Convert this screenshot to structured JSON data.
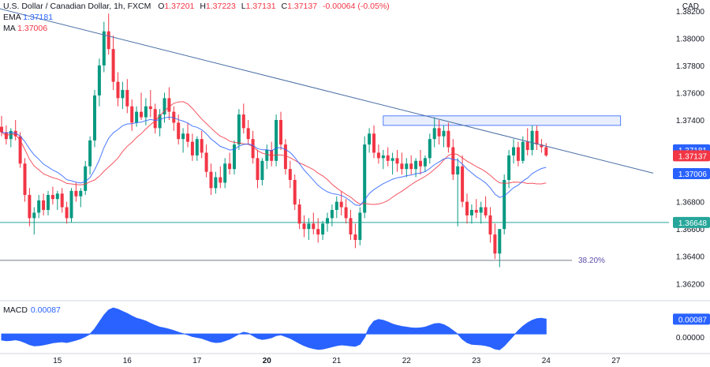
{
  "header": {
    "symbol": "U.S. Dollar / Canadian Dollar, 1h, FXCM",
    "open_label": "O",
    "open": "1.37201",
    "high_label": "H",
    "high": "1.37223",
    "low_label": "L",
    "low": "1.37131",
    "close_label": "C",
    "close": "1.37137",
    "change": "-0.00064 (-0.05%)",
    "ema_label": "EMA",
    "ema_value": "1.37181",
    "ma_label": "MA",
    "ma_value": "1.37006",
    "currency": "CAD"
  },
  "macd": {
    "label": "MACD",
    "value": "0.00087",
    "axis_tick": "0.00000"
  },
  "colors": {
    "bull": "#089981",
    "bear": "#f23645",
    "ema": "#2962ff",
    "ma": "#f23645",
    "trendline": "#4a6fa5",
    "support": "#26a69a",
    "fib": "#787b86",
    "zone_fill": "#e8eefc",
    "zone_border": "#2962ff",
    "macd_fill": "#2962ff"
  },
  "chart_data": {
    "type": "line",
    "title": "U.S. Dollar / Canadian Dollar, 1h, FXCM",
    "y_axis": {
      "ylim": [
        1.3608,
        1.3828
      ],
      "ticks": [
        "1.38200",
        "1.38000",
        "1.37800",
        "1.37600",
        "1.37400",
        "1.37200",
        "1.37000",
        "1.36800",
        "1.36600",
        "1.36400",
        "1.36200"
      ],
      "tick_values": [
        1.382,
        1.38,
        1.378,
        1.376,
        1.374,
        1.372,
        1.37,
        1.368,
        1.366,
        1.364,
        1.362
      ]
    },
    "x_axis": {
      "labels": [
        "15",
        "16",
        "17",
        "20",
        "21",
        "22",
        "23",
        "24",
        "27"
      ],
      "bold": [
        "20"
      ],
      "label_bar_index": [
        12,
        27,
        42,
        57,
        72,
        87,
        102,
        117,
        132
      ]
    },
    "price_labels": [
      {
        "text": "1.37181",
        "value": 1.37181,
        "color": "#2962ff"
      },
      {
        "text": "1.37137",
        "value": 1.37137,
        "color": "#f23645"
      },
      {
        "text": "1.37006",
        "value": 1.37006,
        "color": "#2962ff"
      },
      {
        "text": "1.36648",
        "value": 1.36648,
        "color": "#26a69a"
      }
    ],
    "horizontal_lines": [
      {
        "name": "support",
        "value": 1.36648
      },
      {
        "name": "fib-38",
        "value": 1.3637,
        "label": "38.20%"
      }
    ],
    "trendline": {
      "from": {
        "bar": -2,
        "price": 1.3823
      },
      "to": {
        "bar": 140,
        "price": 1.3701
      }
    },
    "resistance_zone": {
      "from_bar": 82,
      "to_bar": 133,
      "top": 1.3743,
      "bottom": 1.3736
    },
    "candles_ohlc": [
      [
        1.3735,
        1.3743,
        1.3728,
        1.3731
      ],
      [
        1.3731,
        1.3736,
        1.3722,
        1.3726
      ],
      [
        1.3726,
        1.3734,
        1.372,
        1.3732
      ],
      [
        1.3732,
        1.374,
        1.3725,
        1.3728
      ],
      [
        1.3728,
        1.3731,
        1.3705,
        1.3708
      ],
      [
        1.3708,
        1.3712,
        1.368,
        1.3685
      ],
      [
        1.3685,
        1.369,
        1.3662,
        1.3668
      ],
      [
        1.3668,
        1.3676,
        1.3656,
        1.3672
      ],
      [
        1.3672,
        1.3685,
        1.3668,
        1.3681
      ],
      [
        1.3681,
        1.3686,
        1.367,
        1.3674
      ],
      [
        1.3674,
        1.3688,
        1.367,
        1.3685
      ],
      [
        1.3685,
        1.3691,
        1.3678,
        1.3682
      ],
      [
        1.3682,
        1.3688,
        1.3674,
        1.3686
      ],
      [
        1.3686,
        1.369,
        1.3672,
        1.3676
      ],
      [
        1.3676,
        1.368,
        1.3664,
        1.3668
      ],
      [
        1.3668,
        1.369,
        1.3665,
        1.3688
      ],
      [
        1.3688,
        1.3694,
        1.368,
        1.3684
      ],
      [
        1.3684,
        1.369,
        1.3676,
        1.3688
      ],
      [
        1.3688,
        1.371,
        1.3685,
        1.3706
      ],
      [
        1.3706,
        1.3728,
        1.37,
        1.3725
      ],
      [
        1.3725,
        1.3762,
        1.372,
        1.3758
      ],
      [
        1.3758,
        1.3785,
        1.375,
        1.378
      ],
      [
        1.378,
        1.3812,
        1.3775,
        1.3805
      ],
      [
        1.3805,
        1.3818,
        1.3788,
        1.3792
      ],
      [
        1.3792,
        1.3802,
        1.3762,
        1.3768
      ],
      [
        1.3768,
        1.3775,
        1.375,
        1.3756
      ],
      [
        1.3756,
        1.3768,
        1.3748,
        1.3762
      ],
      [
        1.3762,
        1.377,
        1.3745,
        1.375
      ],
      [
        1.375,
        1.3755,
        1.3732,
        1.3738
      ],
      [
        1.3738,
        1.375,
        1.3735,
        1.3746
      ],
      [
        1.3746,
        1.376,
        1.374,
        1.3742
      ],
      [
        1.3742,
        1.3756,
        1.3736,
        1.375
      ],
      [
        1.375,
        1.3762,
        1.3742,
        1.3748
      ],
      [
        1.3748,
        1.3752,
        1.373,
        1.3734
      ],
      [
        1.3734,
        1.3748,
        1.3728,
        1.3744
      ],
      [
        1.3744,
        1.376,
        1.3738,
        1.3756
      ],
      [
        1.3756,
        1.3764,
        1.374,
        1.3746
      ],
      [
        1.3746,
        1.375,
        1.3732,
        1.3738
      ],
      [
        1.3738,
        1.3744,
        1.3722,
        1.3726
      ],
      [
        1.3726,
        1.3734,
        1.3716,
        1.373
      ],
      [
        1.373,
        1.3738,
        1.372,
        1.3724
      ],
      [
        1.3724,
        1.373,
        1.371,
        1.3714
      ],
      [
        1.3714,
        1.3728,
        1.371,
        1.3726
      ],
      [
        1.3726,
        1.3732,
        1.3712,
        1.3716
      ],
      [
        1.3716,
        1.3722,
        1.3698,
        1.3702
      ],
      [
        1.3702,
        1.3708,
        1.3685,
        1.369
      ],
      [
        1.369,
        1.3702,
        1.3686,
        1.3698
      ],
      [
        1.3698,
        1.3706,
        1.369,
        1.3694
      ],
      [
        1.3694,
        1.3712,
        1.369,
        1.3708
      ],
      [
        1.3708,
        1.3716,
        1.37,
        1.3704
      ],
      [
        1.3704,
        1.3725,
        1.37,
        1.3722
      ],
      [
        1.3722,
        1.3748,
        1.3718,
        1.3744
      ],
      [
        1.3744,
        1.3752,
        1.373,
        1.3734
      ],
      [
        1.3734,
        1.374,
        1.3722,
        1.3726
      ],
      [
        1.3726,
        1.3732,
        1.3708,
        1.3712
      ],
      [
        1.3712,
        1.3718,
        1.369,
        1.3696
      ],
      [
        1.3696,
        1.3712,
        1.3692,
        1.371
      ],
      [
        1.371,
        1.3722,
        1.3704,
        1.3718
      ],
      [
        1.3718,
        1.3724,
        1.3706,
        1.371
      ],
      [
        1.371,
        1.3744,
        1.3706,
        1.374
      ],
      [
        1.374,
        1.3746,
        1.3718,
        1.3722
      ],
      [
        1.3722,
        1.3726,
        1.37,
        1.3704
      ],
      [
        1.3704,
        1.371,
        1.369,
        1.3696
      ],
      [
        1.3696,
        1.37,
        1.3674,
        1.3678
      ],
      [
        1.3678,
        1.3682,
        1.366,
        1.3664
      ],
      [
        1.3664,
        1.367,
        1.3654,
        1.366
      ],
      [
        1.366,
        1.3668,
        1.3652,
        1.3664
      ],
      [
        1.3664,
        1.3672,
        1.3656,
        1.366
      ],
      [
        1.366,
        1.3668,
        1.365,
        1.3656
      ],
      [
        1.3656,
        1.3666,
        1.3652,
        1.3664
      ],
      [
        1.3664,
        1.3672,
        1.3658,
        1.3668
      ],
      [
        1.3668,
        1.3678,
        1.3662,
        1.3674
      ],
      [
        1.3674,
        1.3684,
        1.3668,
        1.368
      ],
      [
        1.368,
        1.3688,
        1.367,
        1.3676
      ],
      [
        1.3676,
        1.3682,
        1.3664,
        1.3668
      ],
      [
        1.3668,
        1.3674,
        1.3652,
        1.3656
      ],
      [
        1.3656,
        1.3664,
        1.3646,
        1.3652
      ],
      [
        1.3652,
        1.3676,
        1.3648,
        1.3672
      ],
      [
        1.3672,
        1.3728,
        1.3668,
        1.3722
      ],
      [
        1.3722,
        1.3734,
        1.3716,
        1.373
      ],
      [
        1.373,
        1.3736,
        1.3712,
        1.3716
      ],
      [
        1.3716,
        1.3722,
        1.3708,
        1.3712
      ],
      [
        1.3712,
        1.3718,
        1.3704,
        1.3714
      ],
      [
        1.3714,
        1.372,
        1.3706,
        1.371
      ],
      [
        1.371,
        1.3716,
        1.37,
        1.3712
      ],
      [
        1.3712,
        1.3718,
        1.3702,
        1.3708
      ],
      [
        1.3708,
        1.3716,
        1.37,
        1.3704
      ],
      [
        1.3704,
        1.3712,
        1.3698,
        1.3708
      ],
      [
        1.3708,
        1.3714,
        1.37,
        1.3704
      ],
      [
        1.3704,
        1.3712,
        1.3698,
        1.371
      ],
      [
        1.371,
        1.3718,
        1.37,
        1.3706
      ],
      [
        1.3706,
        1.3714,
        1.3702,
        1.3712
      ],
      [
        1.3712,
        1.373,
        1.3708,
        1.3726
      ],
      [
        1.3726,
        1.3742,
        1.372,
        1.3734
      ],
      [
        1.3734,
        1.374,
        1.3722,
        1.3728
      ],
      [
        1.3728,
        1.3736,
        1.372,
        1.3732
      ],
      [
        1.3732,
        1.3738,
        1.3716,
        1.372
      ],
      [
        1.372,
        1.3726,
        1.3696,
        1.37
      ],
      [
        1.37,
        1.3712,
        1.3662,
        1.3706
      ],
      [
        1.3706,
        1.3714,
        1.3676,
        1.368
      ],
      [
        1.368,
        1.3686,
        1.3664,
        1.367
      ],
      [
        1.367,
        1.3678,
        1.3664,
        1.3674
      ],
      [
        1.3674,
        1.3682,
        1.3668,
        1.3672
      ],
      [
        1.3672,
        1.368,
        1.3664,
        1.3676
      ],
      [
        1.3676,
        1.3684,
        1.3668,
        1.367
      ],
      [
        1.367,
        1.3676,
        1.365,
        1.3656
      ],
      [
        1.3656,
        1.3664,
        1.3638,
        1.3642
      ],
      [
        1.3642,
        1.365,
        1.3632,
        1.366
      ],
      [
        1.366,
        1.37,
        1.3656,
        1.3696
      ],
      [
        1.3696,
        1.3718,
        1.369,
        1.3714
      ],
      [
        1.3714,
        1.3726,
        1.3708,
        1.372
      ],
      [
        1.372,
        1.3724,
        1.3706,
        1.371
      ],
      [
        1.371,
        1.3728,
        1.3708,
        1.3724
      ],
      [
        1.3724,
        1.3734,
        1.3714,
        1.3718
      ],
      [
        1.3718,
        1.3736,
        1.3714,
        1.3732
      ],
      [
        1.3732,
        1.3736,
        1.3718,
        1.3722
      ],
      [
        1.3722,
        1.3726,
        1.3716,
        1.372
      ],
      [
        1.372,
        1.3723,
        1.3713,
        1.3714
      ]
    ],
    "macd": {
      "ylim": [
        -0.0011,
        0.0019
      ],
      "values": [
        -0.00035,
        -0.0004,
        -0.00038,
        -0.00034,
        -0.0004,
        -0.0005,
        -0.00062,
        -0.0007,
        -0.00068,
        -0.00064,
        -0.00058,
        -0.00052,
        -0.00048,
        -0.00046,
        -0.0005,
        -0.00044,
        -0.00036,
        -0.00028,
        -0.00015,
        0.0,
        0.0003,
        0.0007,
        0.0011,
        0.0014,
        0.00152,
        0.00145,
        0.00132,
        0.0012,
        0.00105,
        0.00092,
        0.00085,
        0.00075,
        0.00062,
        0.0005,
        0.0004,
        0.00035,
        0.00028,
        0.0002,
        0.0001,
        2e-05,
        -5e-05,
        -0.00015,
        -0.0002,
        -0.00025,
        -0.00035,
        -0.00045,
        -0.0005,
        -0.00048,
        -0.0004,
        -0.0003,
        -0.00015,
        0.0,
        0.0001,
        5e-05,
        -0.0001,
        -0.00025,
        -0.00032,
        -0.00028,
        -0.00022,
        -0.0001,
        -5e-05,
        -0.00015,
        -0.00025,
        -0.0004,
        -0.00055,
        -0.00068,
        -0.00078,
        -0.00085,
        -0.0009,
        -0.00088,
        -0.00082,
        -0.00075,
        -0.00068,
        -0.00064,
        -0.00066,
        -0.0007,
        -0.00072,
        -0.0006,
        -0.0002,
        0.0004,
        0.00075,
        0.00085,
        0.0008,
        0.0007,
        0.00058,
        0.0005,
        0.00044,
        0.0004,
        0.00036,
        0.00034,
        0.00036,
        0.0004,
        0.0005,
        0.0006,
        0.00062,
        0.00055,
        0.0004,
        0.0002,
        0.0,
        -0.0003,
        -0.0005,
        -0.0006,
        -0.00062,
        -0.00064,
        -0.00068,
        -0.00075,
        -0.00088,
        -0.00092,
        -0.0007,
        -0.0004,
        -0.0001,
        0.0002,
        0.00045,
        0.00065,
        0.0008,
        0.0009,
        0.00092,
        0.00087
      ]
    }
  }
}
